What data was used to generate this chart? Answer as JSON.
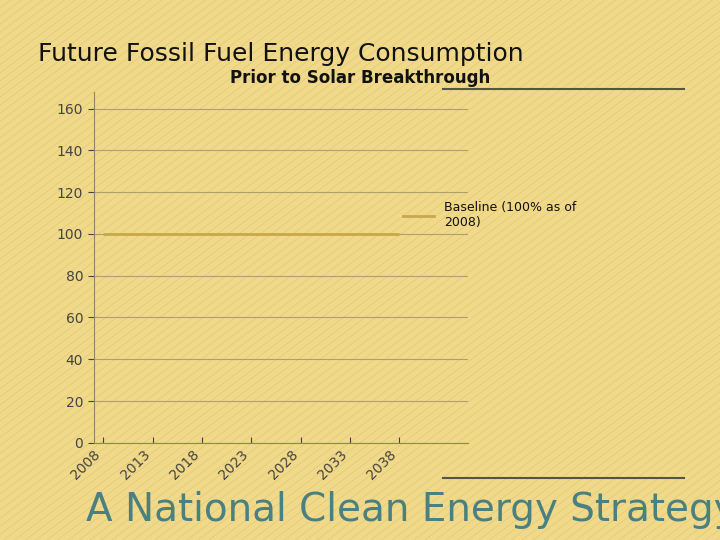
{
  "title": "Future Fossil Fuel Energy Consumption",
  "subtitle": "Prior to Solar Breakthrough",
  "footer": "A National Clean Energy Strategy",
  "bg_color": "#f0d98a",
  "line_color": "#c8a84b",
  "baseline_y": 100,
  "x_start": 2008,
  "x_end": 2038,
  "x_ticks": [
    2008,
    2013,
    2018,
    2023,
    2028,
    2033,
    2038
  ],
  "y_ticks": [
    0,
    20,
    40,
    60,
    80,
    100,
    120,
    140,
    160
  ],
  "ylim_max": 168,
  "xlim": [
    2007,
    2045
  ],
  "legend_label": "Baseline (100% as of\n2008)",
  "grid_color": "#b0a070",
  "spine_color": "#888866",
  "tick_color": "#444444",
  "title_fontsize": 18,
  "subtitle_fontsize": 12,
  "footer_fontsize": 28,
  "footer_color": "#4a8080",
  "deco_line_color": "#555544"
}
